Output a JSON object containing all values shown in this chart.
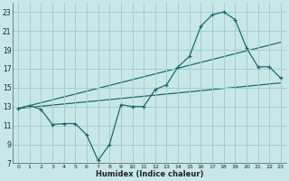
{
  "xlabel": "Humidex (Indice chaleur)",
  "background_color": "#c8e8e8",
  "grid_color": "#a8cccc",
  "line_color": "#1a6b6b",
  "xlim": [
    -0.5,
    23.5
  ],
  "ylim": [
    7,
    24
  ],
  "xticks": [
    0,
    1,
    2,
    3,
    4,
    5,
    6,
    7,
    8,
    9,
    10,
    11,
    12,
    13,
    14,
    15,
    16,
    17,
    18,
    19,
    20,
    21,
    22,
    23
  ],
  "yticks": [
    7,
    9,
    11,
    13,
    15,
    17,
    19,
    21,
    23
  ],
  "series_main": {
    "x": [
      0,
      1,
      2,
      3,
      4,
      5,
      6,
      7,
      8,
      9,
      10,
      11,
      12,
      13,
      14,
      15,
      16,
      17,
      18,
      19,
      20,
      21,
      22,
      23
    ],
    "y": [
      12.8,
      13.1,
      12.7,
      11.1,
      11.2,
      11.2,
      10.0,
      7.3,
      9.0,
      13.2,
      13.0,
      13.0,
      14.8,
      15.3,
      17.2,
      18.3,
      21.5,
      22.7,
      23.0,
      22.2,
      19.2,
      17.2,
      17.2,
      16.0
    ]
  },
  "trend1": {
    "x": [
      0,
      23
    ],
    "y": [
      12.8,
      19.8
    ]
  },
  "trend2": {
    "x": [
      0,
      23
    ],
    "y": [
      12.8,
      15.5
    ]
  }
}
